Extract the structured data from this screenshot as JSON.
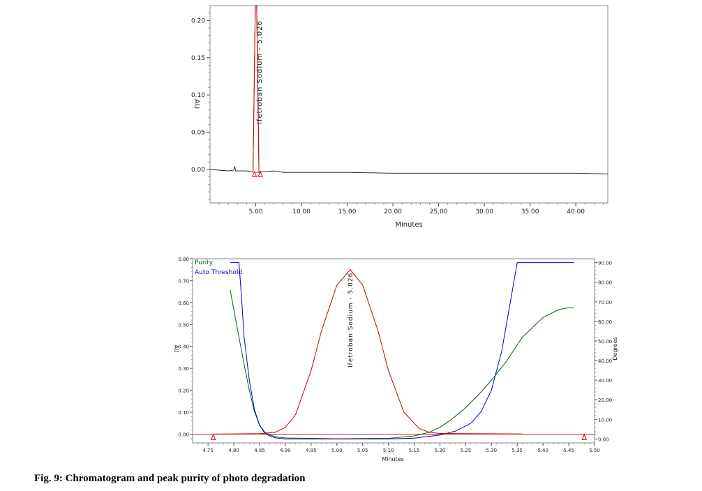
{
  "caption": "Fig. 9: Chromatogram and peak purity of photo degradation",
  "chart_data": [
    {
      "type": "line",
      "xlabel": "Minutes",
      "ylabel": "AU",
      "xlim": [
        0,
        43.5
      ],
      "ylim": [
        -0.045,
        0.22
      ],
      "x_ticks": [
        "5.00",
        "10.00",
        "15.00",
        "20.00",
        "25.00",
        "30.00",
        "35.00",
        "40.00"
      ],
      "y_ticks": [
        "0.00",
        "0.05",
        "0.10",
        "0.15",
        "0.20"
      ],
      "peak_label": "Ifetroban Sodium - 5.026",
      "peak": {
        "rt": 5.026,
        "height": 0.22
      },
      "color": "#cc0000",
      "series": [
        {
          "x": [
            0,
            1,
            2,
            2.6,
            2.7,
            2.8,
            3.2,
            4.0,
            4.7,
            4.95,
            5.026,
            5.1,
            5.35,
            6,
            7,
            8,
            10,
            15,
            20,
            25,
            30,
            35,
            40,
            43.5
          ],
          "y": [
            0,
            -0.001,
            -0.002,
            -0.001,
            0.004,
            -0.002,
            -0.002,
            -0.002,
            -0.003,
            0.22,
            0.22,
            0.22,
            -0.003,
            -0.003,
            -0.002,
            -0.004,
            -0.004,
            -0.004,
            -0.005,
            -0.005,
            -0.005,
            -0.005,
            -0.005,
            -0.006
          ]
        }
      ]
    },
    {
      "type": "line",
      "xlabel": "Minutes",
      "ylabel": "AU",
      "ylabel_right": "Degrees",
      "xlim": [
        4.72,
        5.5
      ],
      "ylim": [
        -0.04,
        0.8
      ],
      "y2lim": [
        -2,
        92
      ],
      "x_ticks": [
        "4.75",
        "4.80",
        "4.85",
        "4.90",
        "4.95",
        "5.00",
        "5.05",
        "5.10",
        "5.15",
        "5.20",
        "5.25",
        "5.30",
        "5.35",
        "5.40",
        "5.45",
        "5.50"
      ],
      "y_ticks": [
        "0.00",
        "0.10",
        "0.20",
        "0.30",
        "0.40",
        "0.50",
        "0.60",
        "0.70",
        "0.80"
      ],
      "y2_ticks": [
        "0.00",
        "10.00",
        "20.00",
        "30.00",
        "40.00",
        "50.00",
        "60.00",
        "70.00",
        "80.00",
        "90.00"
      ],
      "peak_label": "Ifetroban Sodium - 5.026",
      "legend": [
        "Purity",
        "Auto Threshold"
      ],
      "colors": {
        "peak": "#cc0000",
        "purity": "#006400",
        "threshold": "#0000cc"
      },
      "integration_markers": [
        4.76,
        5.48
      ],
      "series": [
        {
          "name": "Purity",
          "axis": "right",
          "x": [
            4.793,
            4.8,
            4.81,
            4.82,
            4.83,
            4.84,
            4.85,
            4.86,
            4.87,
            4.88,
            4.9,
            4.95,
            5.0,
            5.1,
            5.15,
            5.18,
            5.2,
            5.22,
            5.25,
            5.28,
            5.3,
            5.33,
            5.36,
            5.4,
            5.43,
            5.45,
            5.46
          ],
          "y": [
            76,
            66,
            52,
            38,
            25,
            14,
            7,
            3.5,
            2,
            1.2,
            0.5,
            0.3,
            0.1,
            0.3,
            1.5,
            3.5,
            6,
            9.5,
            16,
            24,
            30,
            40,
            52,
            62,
            66,
            67,
            67
          ]
        },
        {
          "name": "Auto Threshold",
          "axis": "right",
          "x": [
            4.793,
            4.81,
            4.815,
            4.82,
            4.83,
            4.84,
            4.85,
            4.86,
            4.87,
            4.88,
            4.9,
            4.95,
            5.0,
            5.1,
            5.15,
            5.2,
            5.23,
            5.26,
            5.28,
            5.3,
            5.32,
            5.34,
            5.35,
            5.4,
            5.46
          ],
          "y": [
            90,
            90,
            72,
            52,
            30,
            15,
            7,
            3,
            1.5,
            0.6,
            0,
            0,
            0,
            0,
            0.4,
            2,
            4,
            8,
            14,
            25,
            45,
            75,
            90,
            90,
            90
          ]
        },
        {
          "name": "",
          "axis": "left",
          "x": [
            4.76,
            4.85,
            4.88,
            4.9,
            4.92,
            4.95,
            4.97,
            5.0,
            5.026,
            5.05,
            5.08,
            5.1,
            5.13,
            5.16,
            5.18,
            5.2,
            5.25,
            5.35,
            5.36
          ],
          "y": [
            0.0,
            0.002,
            0.008,
            0.03,
            0.09,
            0.29,
            0.47,
            0.68,
            0.75,
            0.68,
            0.47,
            0.29,
            0.1,
            0.025,
            0.008,
            0.003,
            0.002,
            0.001,
            0.001
          ]
        }
      ]
    }
  ]
}
